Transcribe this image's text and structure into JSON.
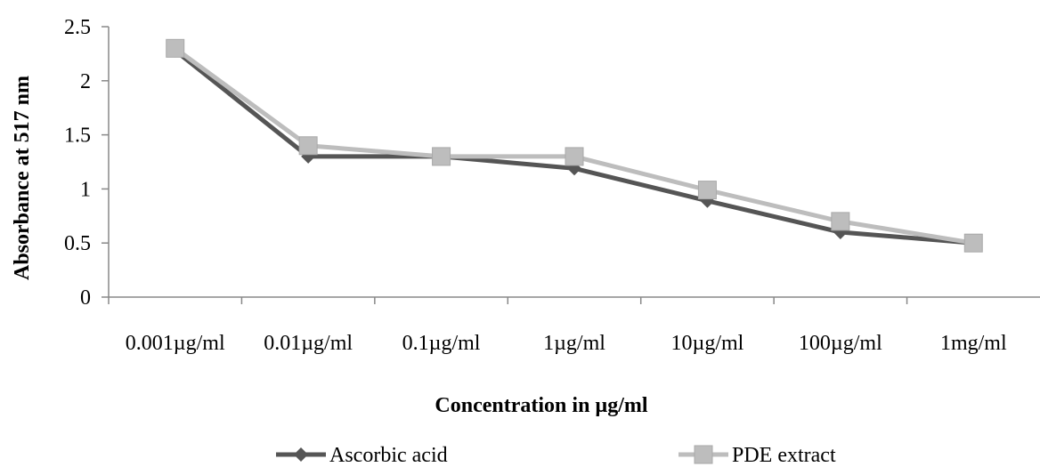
{
  "chart_data": {
    "type": "line",
    "title": "",
    "xlabel": "Concentration in µg/ml",
    "ylabel": "Absorbance at 517 nm",
    "categories": [
      "0.001µg/ml",
      "0.01µg/ml",
      "0.1µg/ml",
      "1µg/ml",
      "10µg/ml",
      "100µg/ml",
      "1mg/ml"
    ],
    "yticks": [
      "0",
      "0.5",
      "1",
      "1.5",
      "2",
      "2.5"
    ],
    "ylim": [
      0,
      2.5
    ],
    "grid": false,
    "legend_position": "bottom",
    "series": [
      {
        "name": "Ascorbic acid",
        "values": [
          2.28,
          1.3,
          1.3,
          1.19,
          0.89,
          0.6,
          0.5
        ],
        "color": "#555555",
        "marker": "diamond"
      },
      {
        "name": "PDE extract",
        "values": [
          2.3,
          1.4,
          1.3,
          1.3,
          0.99,
          0.7,
          0.5
        ],
        "color": "#bdbdbd",
        "marker": "square"
      }
    ]
  }
}
